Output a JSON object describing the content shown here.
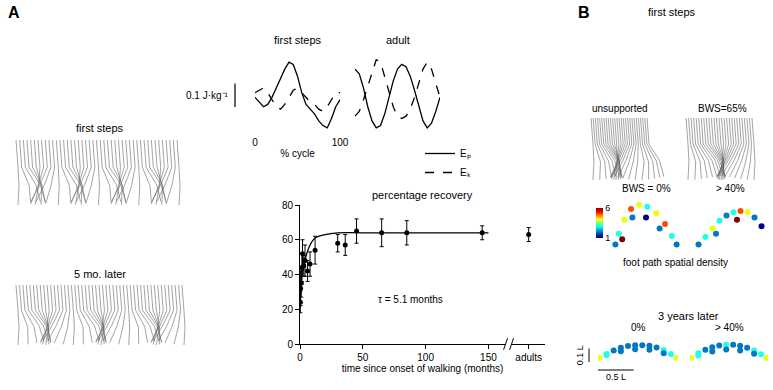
{
  "figure": {
    "panel_a": "A",
    "panel_b": "B",
    "a_first_steps": "first steps",
    "a_later": "5 mo. later",
    "b_first_steps": "first steps",
    "b_unsupported": "unsupported",
    "b_bws": "BWS=65%",
    "b_density": "foot path spatial density",
    "b_later": "3 years later"
  },
  "chart_data": [
    {
      "type": "line",
      "title": "first steps",
      "xlabel": "% cycle",
      "x": [
        0,
        5,
        10,
        15,
        20,
        25,
        30,
        35,
        40,
        45,
        50,
        55,
        60,
        65,
        70,
        75,
        80,
        85,
        90,
        95,
        100
      ],
      "series": [
        {
          "name": "Eₚ",
          "color": "#000000",
          "line_style": "solid",
          "values": [
            0.0,
            -0.02,
            -0.04,
            -0.03,
            0.0,
            0.04,
            0.08,
            0.12,
            0.15,
            0.14,
            0.09,
            0.02,
            -0.03,
            -0.05,
            -0.07,
            -0.1,
            -0.12,
            -0.13,
            -0.09,
            -0.04,
            -0.01
          ]
        },
        {
          "name": "Eₖ",
          "color": "#000000",
          "line_style": "dash",
          "values": [
            0.02,
            0.03,
            0.04,
            0.02,
            -0.01,
            -0.04,
            -0.05,
            -0.03,
            0.0,
            0.03,
            0.04,
            0.02,
            0.0,
            -0.02,
            -0.03,
            -0.05,
            -0.06,
            -0.04,
            -0.01,
            0.02,
            0.02
          ]
        }
      ],
      "xlim": [
        0,
        100
      ],
      "ylim": [
        -0.16,
        0.18
      ],
      "xticks": [
        0,
        100
      ],
      "tick_labels": "x",
      "scale_bar": {
        "length": 0.1,
        "label": "0.1 J·kg⁻¹"
      }
    },
    {
      "type": "line",
      "title": "adult",
      "x": [
        0,
        5,
        10,
        15,
        20,
        25,
        30,
        35,
        40,
        45,
        50,
        55,
        60,
        65,
        70,
        75,
        80,
        85,
        90,
        95,
        100
      ],
      "series": [
        {
          "name": "Eₚ",
          "color": "#000000",
          "line_style": "solid",
          "values": [
            0.12,
            0.1,
            0.04,
            -0.04,
            -0.1,
            -0.13,
            -0.12,
            -0.07,
            0.0,
            0.07,
            0.12,
            0.14,
            0.13,
            0.09,
            0.03,
            -0.04,
            -0.1,
            -0.13,
            -0.11,
            -0.06,
            0.0
          ]
        },
        {
          "name": "Eₖ",
          "color": "#000000",
          "line_style": "dash",
          "values": [
            -0.08,
            -0.06,
            -0.01,
            0.05,
            0.11,
            0.16,
            0.15,
            0.09,
            0.02,
            -0.04,
            -0.08,
            -0.09,
            -0.08,
            -0.05,
            0.0,
            0.06,
            0.12,
            0.15,
            0.12,
            0.06,
            0.0
          ]
        }
      ],
      "xlim": [
        0,
        100
      ],
      "ylim": [
        -0.16,
        0.18
      ],
      "tick_labels": false,
      "legend": "bottom right"
    },
    {
      "type": "scatter",
      "title": "percentage recovery",
      "xlabel": "time since onset of walking (months)",
      "x": [
        0.3,
        0.5,
        1,
        1.5,
        2,
        3,
        4,
        6,
        8,
        12,
        30,
        36,
        45,
        65,
        85,
        145,
        182
      ],
      "values": [
        24,
        32,
        35,
        44,
        52,
        45,
        48,
        42,
        46,
        54,
        58,
        57,
        65,
        64,
        64,
        64,
        63
      ],
      "errors": [
        6,
        10,
        8,
        8,
        8,
        6,
        9,
        6,
        7,
        8,
        5,
        6,
        7,
        8,
        7,
        4,
        4
      ],
      "fit": {
        "x": [
          0,
          1,
          2,
          3,
          5,
          8,
          12,
          20,
          30,
          50,
          100,
          150
        ],
        "values": [
          30,
          36,
          41,
          45,
          51,
          57,
          61,
          63,
          64,
          64,
          64,
          64
        ]
      },
      "annotations": [
        {
          "text": "τ = 5.1 months"
        }
      ],
      "color": "#000000",
      "marker": "circle",
      "xlim": [
        0,
        195
      ],
      "ylim": [
        0,
        80
      ],
      "xticks": [
        0,
        50,
        100,
        150,
        {
          "value": 182,
          "label": "adults"
        }
      ],
      "yticks": [
        0,
        20,
        40,
        60,
        80
      ]
    },
    {
      "type": "density",
      "title": "BWS = 0%",
      "x": [
        0.05,
        0.1,
        0.18,
        0.28,
        0.4,
        0.52,
        0.65,
        0.78,
        0.88,
        0.95,
        0.15,
        0.3,
        0.5,
        0.7
      ],
      "values": [
        0.05,
        0.15,
        0.28,
        0.38,
        0.42,
        0.4,
        0.34,
        0.24,
        0.13,
        0.05,
        0.1,
        0.3,
        0.3,
        0.2
      ],
      "density": [
        2,
        3,
        4,
        5,
        4,
        3,
        4,
        5,
        3,
        2,
        6,
        2,
        1,
        2
      ],
      "xlim": [
        0,
        1
      ],
      "ylim": [
        0,
        0.5
      ],
      "tick_labels": false,
      "color_range": [
        1,
        6
      ],
      "colorbar_ticks": [
        1,
        6
      ]
    },
    {
      "type": "density",
      "title": "> 40%",
      "x": [
        0.05,
        0.15,
        0.25,
        0.35,
        0.45,
        0.55,
        0.65,
        0.75,
        0.85,
        0.95,
        0.6,
        0.3
      ],
      "values": [
        0.05,
        0.12,
        0.2,
        0.27,
        0.32,
        0.35,
        0.36,
        0.35,
        0.3,
        0.22,
        0.28,
        0.15
      ],
      "density": [
        2,
        3,
        4,
        3,
        2,
        3,
        5,
        4,
        2,
        1,
        6,
        2
      ],
      "xlim": [
        0,
        1
      ],
      "ylim": [
        0,
        0.5
      ],
      "tick_labels": false,
      "color_range": [
        1,
        6
      ]
    },
    {
      "type": "density",
      "title": "0%",
      "x": [
        0,
        0.1,
        0.2,
        0.3,
        0.4,
        0.5,
        0.6,
        0.7,
        0.8,
        0.9,
        1.0,
        1.08,
        0.9,
        0.7,
        0.5,
        0.3,
        0.1
      ],
      "values": [
        0,
        0.03,
        0.055,
        0.075,
        0.088,
        0.095,
        0.095,
        0.09,
        0.078,
        0.058,
        0.03,
        0,
        0.035,
        0.06,
        0.065,
        0.05,
        0.02
      ],
      "density": [
        4,
        3,
        2,
        2,
        2,
        2,
        2,
        2,
        2,
        3,
        3,
        4,
        2,
        2,
        2,
        2,
        3
      ],
      "xlim": [
        -0.02,
        1.1
      ],
      "ylim": [
        -0.03,
        0.17
      ],
      "tick_labels": false,
      "color_range": [
        1,
        6
      ],
      "scale_bars": [
        {
          "axis": "y",
          "length": 0.1,
          "label": "0.1 L"
        },
        {
          "axis": "x",
          "length": 0.5,
          "label": "0.5 L"
        }
      ]
    },
    {
      "type": "density",
      "title": "> 40%",
      "x": [
        0,
        0.1,
        0.2,
        0.3,
        0.4,
        0.5,
        0.6,
        0.7,
        0.8,
        0.9,
        1.0,
        1.08,
        0.9,
        0.7,
        0.5,
        0.3,
        0.1
      ],
      "values": [
        0,
        0.035,
        0.06,
        0.08,
        0.092,
        0.098,
        0.097,
        0.09,
        0.076,
        0.056,
        0.028,
        0,
        0.032,
        0.055,
        0.062,
        0.048,
        0.018
      ],
      "density": [
        4,
        3,
        2,
        2,
        2,
        3,
        2,
        2,
        2,
        3,
        3,
        4,
        2,
        2,
        2,
        2,
        3
      ],
      "xlim": [
        -0.02,
        1.1
      ],
      "ylim": [
        -0.03,
        0.17
      ],
      "tick_labels": false,
      "color_range": [
        1,
        6
      ]
    }
  ]
}
